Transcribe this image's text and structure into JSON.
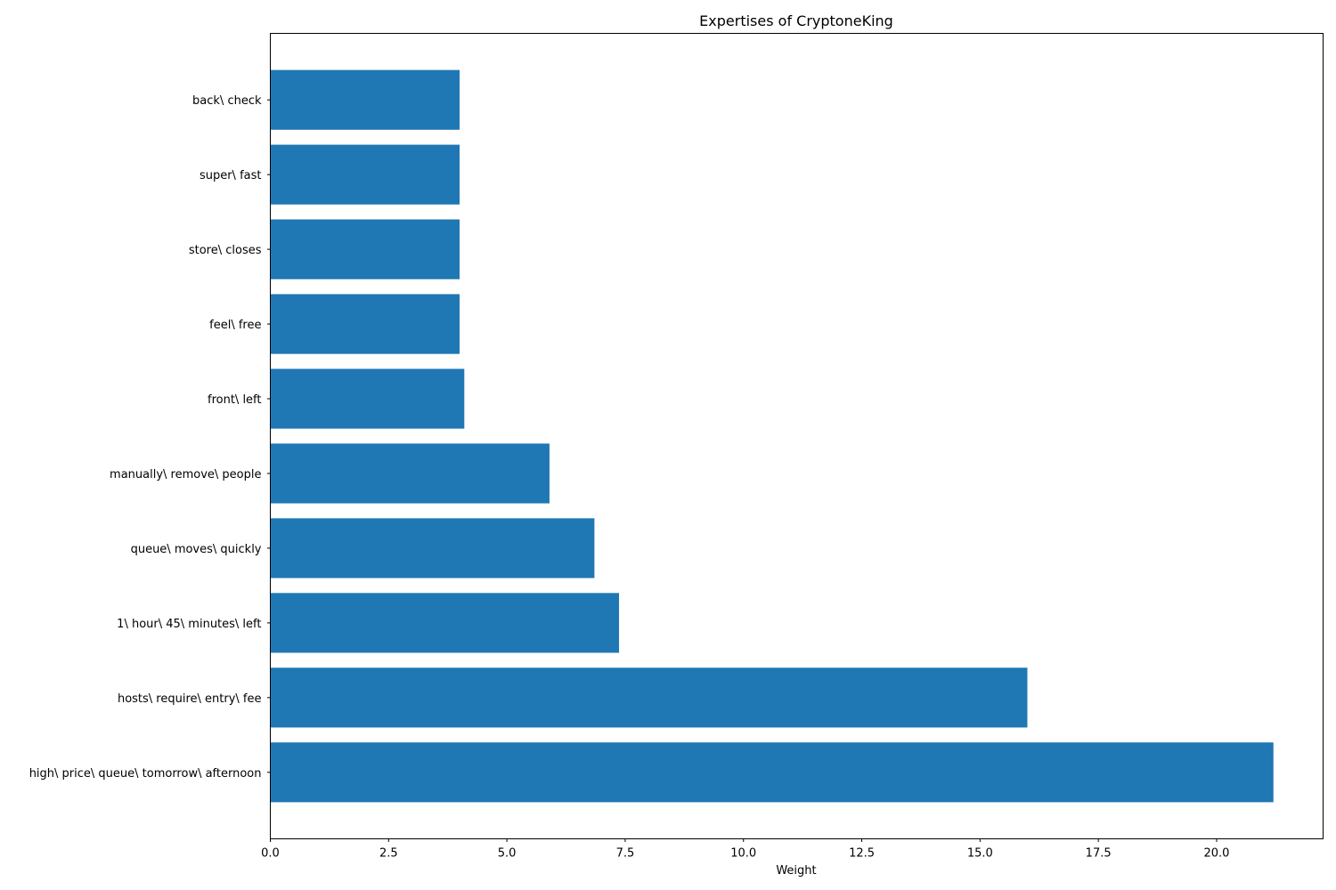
{
  "chart_data": {
    "type": "bar",
    "orientation": "horizontal",
    "title": "Expertises of CryptoneKing",
    "xlabel": "Weight",
    "ylabel": "",
    "categories": [
      "high\\ price\\ queue\\ tomorrow\\ afternoon",
      "hosts\\ require\\ entry\\ fee",
      "1\\ hour\\ 45\\ minutes\\ left",
      "queue\\ moves\\ quickly",
      "manually\\ remove\\ people",
      "front\\ left",
      "feel\\ free",
      "store\\ closes",
      "super\\ fast",
      "back\\ check"
    ],
    "values": [
      21.2,
      16.0,
      7.37,
      6.85,
      5.9,
      4.1,
      4.0,
      4.0,
      4.0,
      4.0
    ],
    "xlim": [
      0,
      22.25
    ],
    "xticks": [
      "0.0",
      "2.5",
      "5.0",
      "7.5",
      "10.0",
      "12.5",
      "15.0",
      "17.5",
      "20.0"
    ],
    "grid": false,
    "legend": "none",
    "bar_color": "#1f77b4"
  }
}
